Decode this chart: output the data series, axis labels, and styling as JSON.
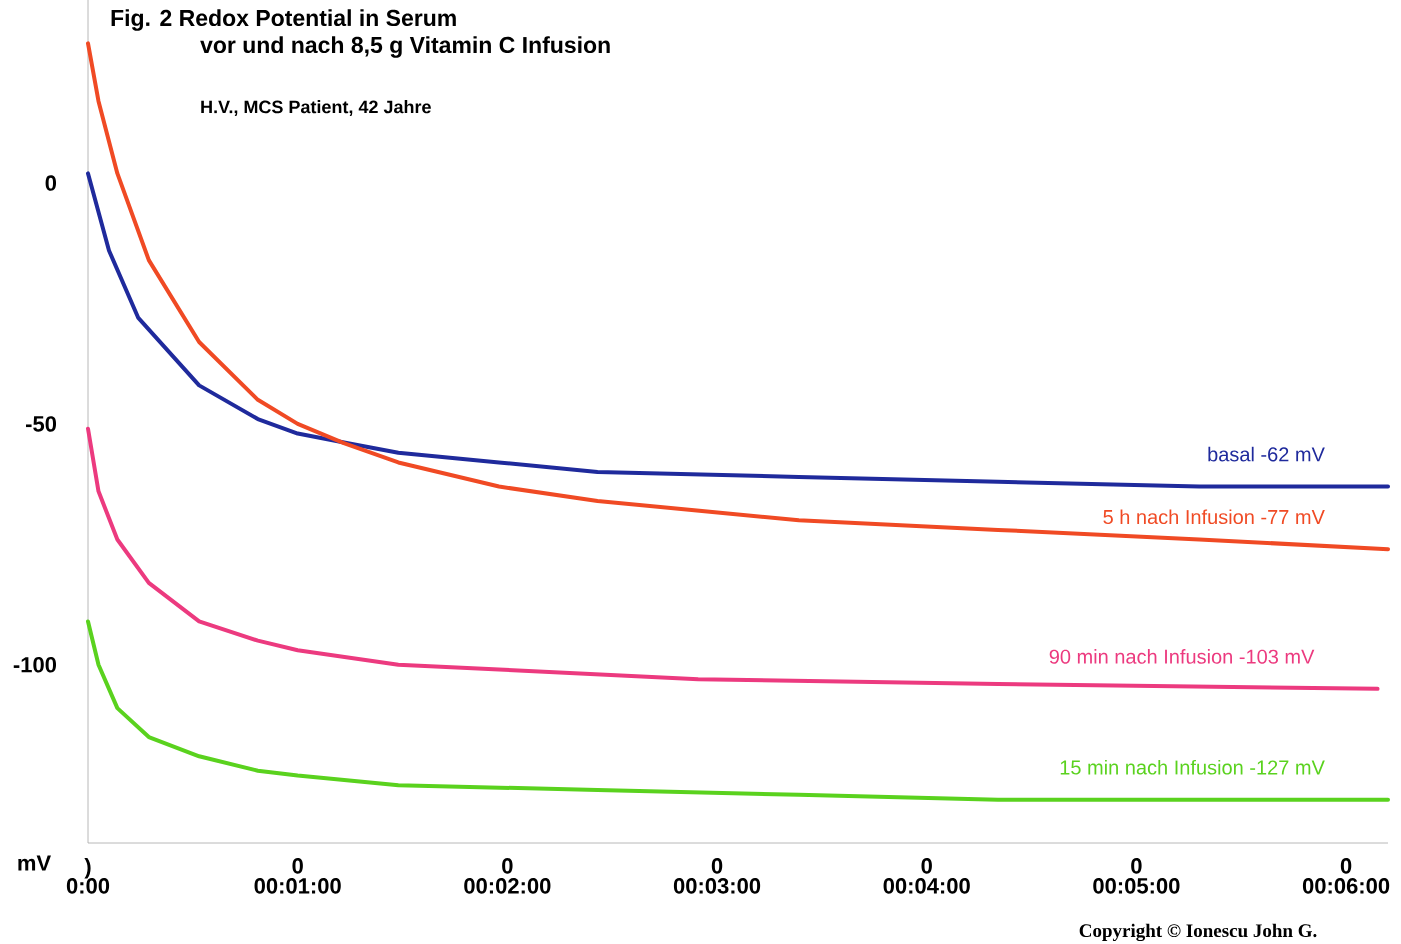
{
  "chart_data": {
    "type": "line",
    "title": "Fig. 2   Redox Potential in Serum",
    "subtitle": "vor und nach 8,5 g Vitamin C  Infusion",
    "ylabel": "mV",
    "annotations": [
      "H.V., MCS Patient, 42 Jahre",
      "Copyright © Ionescu John G.",
      ")",
      "0",
      "0",
      "0",
      "0",
      "0",
      "0"
    ],
    "series": [
      {
        "name": "basal  -62 mV",
        "color": "#1f2a9c",
        "x": [
          0,
          0.1,
          0.24,
          0.53,
          0.81,
          1.0,
          1.24,
          1.48,
          1.96,
          2.43,
          3.39,
          4.34,
          5.3,
          6.2
        ],
        "values": [
          2,
          -14,
          -28,
          -42,
          -49,
          -52,
          -54,
          -56,
          -58,
          -60,
          -61,
          -62,
          -63,
          -63
        ]
      },
      {
        "name": "5 h nach Infusion -77 mV",
        "color": "#f04a24",
        "x": [
          0,
          0.05,
          0.14,
          0.29,
          0.53,
          0.81,
          1.0,
          1.22,
          1.48,
          1.96,
          2.43,
          3.39,
          4.34,
          5.3,
          6.2
        ],
        "values": [
          29,
          17,
          2,
          -16,
          -33,
          -45,
          -50,
          -54,
          -58,
          -63,
          -66,
          -70,
          -72,
          -74,
          -76
        ]
      },
      {
        "name": "90 min nach Infusion -103 mV",
        "color": "#ec3a7f",
        "x": [
          0,
          0.05,
          0.14,
          0.29,
          0.53,
          0.81,
          1.0,
          1.48,
          1.96,
          2.91,
          4.34,
          6.15
        ],
        "values": [
          -51,
          -64,
          -74,
          -83,
          -91,
          -95,
          -97,
          -100,
          -101,
          -103,
          -104,
          -105
        ]
      },
      {
        "name": "15 min nach Infusion -127 mV",
        "color": "#5ad21e",
        "x": [
          0,
          0.05,
          0.14,
          0.29,
          0.53,
          0.81,
          1.0,
          1.48,
          2.43,
          3.39,
          4.34,
          6.2
        ],
        "values": [
          -91,
          -100,
          -109,
          -115,
          -119,
          -122,
          -123,
          -125,
          -126,
          -127,
          -128,
          -128
        ]
      }
    ],
    "xlim": [
      0,
      6.2
    ],
    "ylim": [
      -137,
      38
    ],
    "xticks": [
      {
        "value": 0,
        "label": "0:00"
      },
      {
        "value": 1,
        "label": "00:01:00"
      },
      {
        "value": 2,
        "label": "00:02:00"
      },
      {
        "value": 3,
        "label": "00:03:00"
      },
      {
        "value": 4,
        "label": "00:04:00"
      },
      {
        "value": 5,
        "label": "00:05:00"
      },
      {
        "value": 6,
        "label": "00:06:00"
      }
    ],
    "yticks": [
      0,
      -50,
      -100
    ],
    "grid": false,
    "marker": "none",
    "line_style": "solid"
  }
}
